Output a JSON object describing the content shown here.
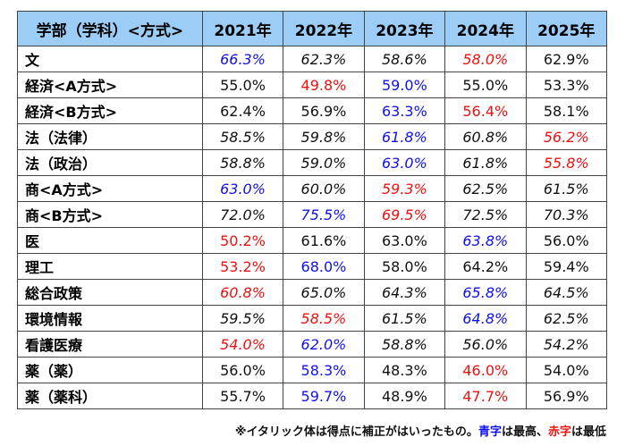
{
  "header": [
    "学部（学科）<方式>",
    "2021年",
    "2022年",
    "2023年",
    "2024年",
    "2025年"
  ],
  "rows": [
    {
      "name": "文",
      "cells": [
        {
          "v": "66.3%",
          "c": "b",
          "i": true
        },
        {
          "v": "62.3%",
          "c": "k",
          "i": true
        },
        {
          "v": "58.6%",
          "c": "k",
          "i": true
        },
        {
          "v": "58.0%",
          "c": "r",
          "i": true
        },
        {
          "v": "62.9%",
          "c": "k",
          "i": false
        }
      ]
    },
    {
      "name": "経済<A方式>",
      "cells": [
        {
          "v": "55.0%",
          "c": "k",
          "i": false
        },
        {
          "v": "49.8%",
          "c": "r",
          "i": false
        },
        {
          "v": "59.0%",
          "c": "b",
          "i": false
        },
        {
          "v": "55.0%",
          "c": "k",
          "i": false
        },
        {
          "v": "53.3%",
          "c": "k",
          "i": false
        }
      ]
    },
    {
      "name": "経済<B方式>",
      "cells": [
        {
          "v": "62.4%",
          "c": "k",
          "i": false
        },
        {
          "v": "56.9%",
          "c": "k",
          "i": false
        },
        {
          "v": "63.3%",
          "c": "b",
          "i": false
        },
        {
          "v": "56.4%",
          "c": "r",
          "i": false
        },
        {
          "v": "58.1%",
          "c": "k",
          "i": false
        }
      ]
    },
    {
      "name": "法（法律）",
      "cells": [
        {
          "v": "58.5%",
          "c": "k",
          "i": true
        },
        {
          "v": "59.8%",
          "c": "k",
          "i": true
        },
        {
          "v": "61.8%",
          "c": "b",
          "i": true
        },
        {
          "v": "60.8%",
          "c": "k",
          "i": true
        },
        {
          "v": "56.2%",
          "c": "r",
          "i": true
        }
      ]
    },
    {
      "name": "法（政治）",
      "cells": [
        {
          "v": "58.8%",
          "c": "k",
          "i": true
        },
        {
          "v": "59.0%",
          "c": "k",
          "i": true
        },
        {
          "v": "63.0%",
          "c": "b",
          "i": true
        },
        {
          "v": "61.8%",
          "c": "k",
          "i": true
        },
        {
          "v": "55.8%",
          "c": "r",
          "i": true
        }
      ]
    },
    {
      "name": "商<A方式>",
      "cells": [
        {
          "v": "63.0%",
          "c": "b",
          "i": true
        },
        {
          "v": "60.0%",
          "c": "k",
          "i": true
        },
        {
          "v": "59.3%",
          "c": "r",
          "i": true
        },
        {
          "v": "62.5%",
          "c": "k",
          "i": true
        },
        {
          "v": "61.5%",
          "c": "k",
          "i": true
        }
      ]
    },
    {
      "name": "商<B方式>",
      "cells": [
        {
          "v": "72.0%",
          "c": "k",
          "i": true
        },
        {
          "v": "75.5%",
          "c": "b",
          "i": true
        },
        {
          "v": "69.5%",
          "c": "r",
          "i": true
        },
        {
          "v": "72.5%",
          "c": "k",
          "i": true
        },
        {
          "v": "70.3%",
          "c": "k",
          "i": true
        }
      ]
    },
    {
      "name": "医",
      "cells": [
        {
          "v": "50.2%",
          "c": "r",
          "i": false
        },
        {
          "v": "61.6%",
          "c": "k",
          "i": false
        },
        {
          "v": "63.0%",
          "c": "k",
          "i": false
        },
        {
          "v": "63.8%",
          "c": "b",
          "i": true
        },
        {
          "v": "56.0%",
          "c": "k",
          "i": false
        }
      ]
    },
    {
      "name": "理工",
      "cells": [
        {
          "v": "53.2%",
          "c": "r",
          "i": false
        },
        {
          "v": "68.0%",
          "c": "b",
          "i": false
        },
        {
          "v": "58.0%",
          "c": "k",
          "i": false
        },
        {
          "v": "64.2%",
          "c": "k",
          "i": false
        },
        {
          "v": "59.4%",
          "c": "k",
          "i": false
        }
      ]
    },
    {
      "name": "総合政策",
      "cells": [
        {
          "v": "60.8%",
          "c": "r",
          "i": true
        },
        {
          "v": "65.0%",
          "c": "k",
          "i": true
        },
        {
          "v": "64.3%",
          "c": "k",
          "i": true
        },
        {
          "v": "65.8%",
          "c": "b",
          "i": true
        },
        {
          "v": "64.5%",
          "c": "k",
          "i": true
        }
      ]
    },
    {
      "name": "環境情報",
      "cells": [
        {
          "v": "59.5%",
          "c": "k",
          "i": true
        },
        {
          "v": "58.5%",
          "c": "r",
          "i": true
        },
        {
          "v": "61.5%",
          "c": "k",
          "i": true
        },
        {
          "v": "64.8%",
          "c": "b",
          "i": true
        },
        {
          "v": "62.5%",
          "c": "k",
          "i": true
        }
      ]
    },
    {
      "name": "看護医療",
      "cells": [
        {
          "v": "54.0%",
          "c": "r",
          "i": true
        },
        {
          "v": "62.0%",
          "c": "b",
          "i": true
        },
        {
          "v": "58.8%",
          "c": "k",
          "i": true
        },
        {
          "v": "56.0%",
          "c": "k",
          "i": true
        },
        {
          "v": "54.2%",
          "c": "k",
          "i": true
        }
      ]
    },
    {
      "name": "薬（薬）",
      "cells": [
        {
          "v": "56.0%",
          "c": "k",
          "i": false
        },
        {
          "v": "58.3%",
          "c": "b",
          "i": false
        },
        {
          "v": "48.3%",
          "c": "k",
          "i": false
        },
        {
          "v": "46.0%",
          "c": "r",
          "i": false
        },
        {
          "v": "54.0%",
          "c": "k",
          "i": false
        }
      ]
    },
    {
      "name": "薬（薬科）",
      "cells": [
        {
          "v": "55.7%",
          "c": "k",
          "i": false
        },
        {
          "v": "59.7%",
          "c": "b",
          "i": false
        },
        {
          "v": "48.9%",
          "c": "k",
          "i": false
        },
        {
          "v": "47.7%",
          "c": "r",
          "i": false
        },
        {
          "v": "56.9%",
          "c": "k",
          "i": false
        }
      ]
    }
  ],
  "note": {
    "part1": "※イタリック体は得点に補正がはいったもの。",
    "blue": "青字",
    "part2": "は最高、",
    "red": "赤字",
    "part3": "は最低"
  },
  "colors": {
    "b": "#1010ee",
    "r": "#ee1111",
    "k": "#111111",
    "header_bg": "#9ccdf7"
  }
}
